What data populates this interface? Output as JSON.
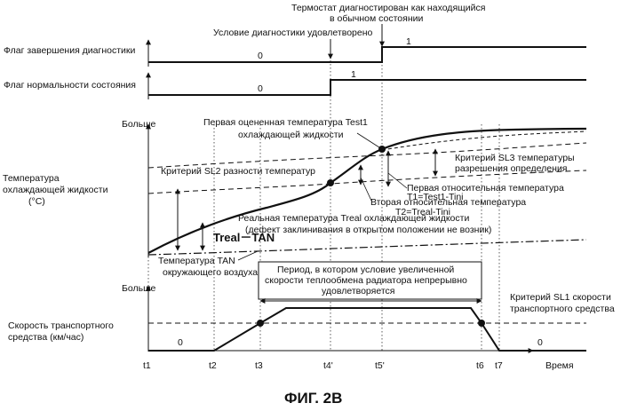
{
  "caption": "ФИГ. 2B",
  "time_axis": {
    "label": "Время",
    "ticks": [
      "t1",
      "t2",
      "t3",
      "t4'",
      "t5'",
      "t6",
      "t7"
    ]
  },
  "events": {
    "thermostat_normal": [
      "Термостат диагностирован как находящийся",
      "в обычном состоянии"
    ],
    "diag_condition": "Условие диагностики удовлетворено"
  },
  "flags": {
    "completion": {
      "label": "Флаг завершения диагностики",
      "before": "0",
      "after": "1"
    },
    "normality": {
      "label": "Флаг нормальности состояния",
      "before": "0",
      "after": "1"
    }
  },
  "coolant_panel": {
    "more": "Больше",
    "ylabel": [
      "Температура",
      "охлаждающей жидкости",
      "(°C)"
    ],
    "test1": [
      "Первая оцененная температура Test1",
      "охлаждающей жидкости"
    ],
    "sl3": [
      "Критерий SL3 температуры",
      "разрешения определения"
    ],
    "sl2": "Критерий SL2 разности температур",
    "t1_label": [
      "Первая относительная температура",
      "T1=Test1-Tini"
    ],
    "t2_label": [
      "Вторая относительная температура",
      "T2=Treal-Tini"
    ],
    "treal_label": [
      "Реальная температура Treal охлаждающей жидкости",
      "(дефект заклинивания в открытом положении не возник)"
    ],
    "diff_label": "Treal－TAN",
    "tan_label": [
      "Температура TAN",
      "окружающего воздуха"
    ]
  },
  "speed_panel": {
    "more": "Больше",
    "ylabel": [
      "Скорость транспортного",
      "средства (км/час)"
    ],
    "period": [
      "Период, в котором условие увеличенной",
      "скорости теплообмена радиатора непрерывно",
      "удовлетворяется"
    ],
    "sl1": [
      "Критерий SL1 скорости",
      "транспортного средства"
    ],
    "zero_left": "0",
    "zero_right": "0"
  }
}
